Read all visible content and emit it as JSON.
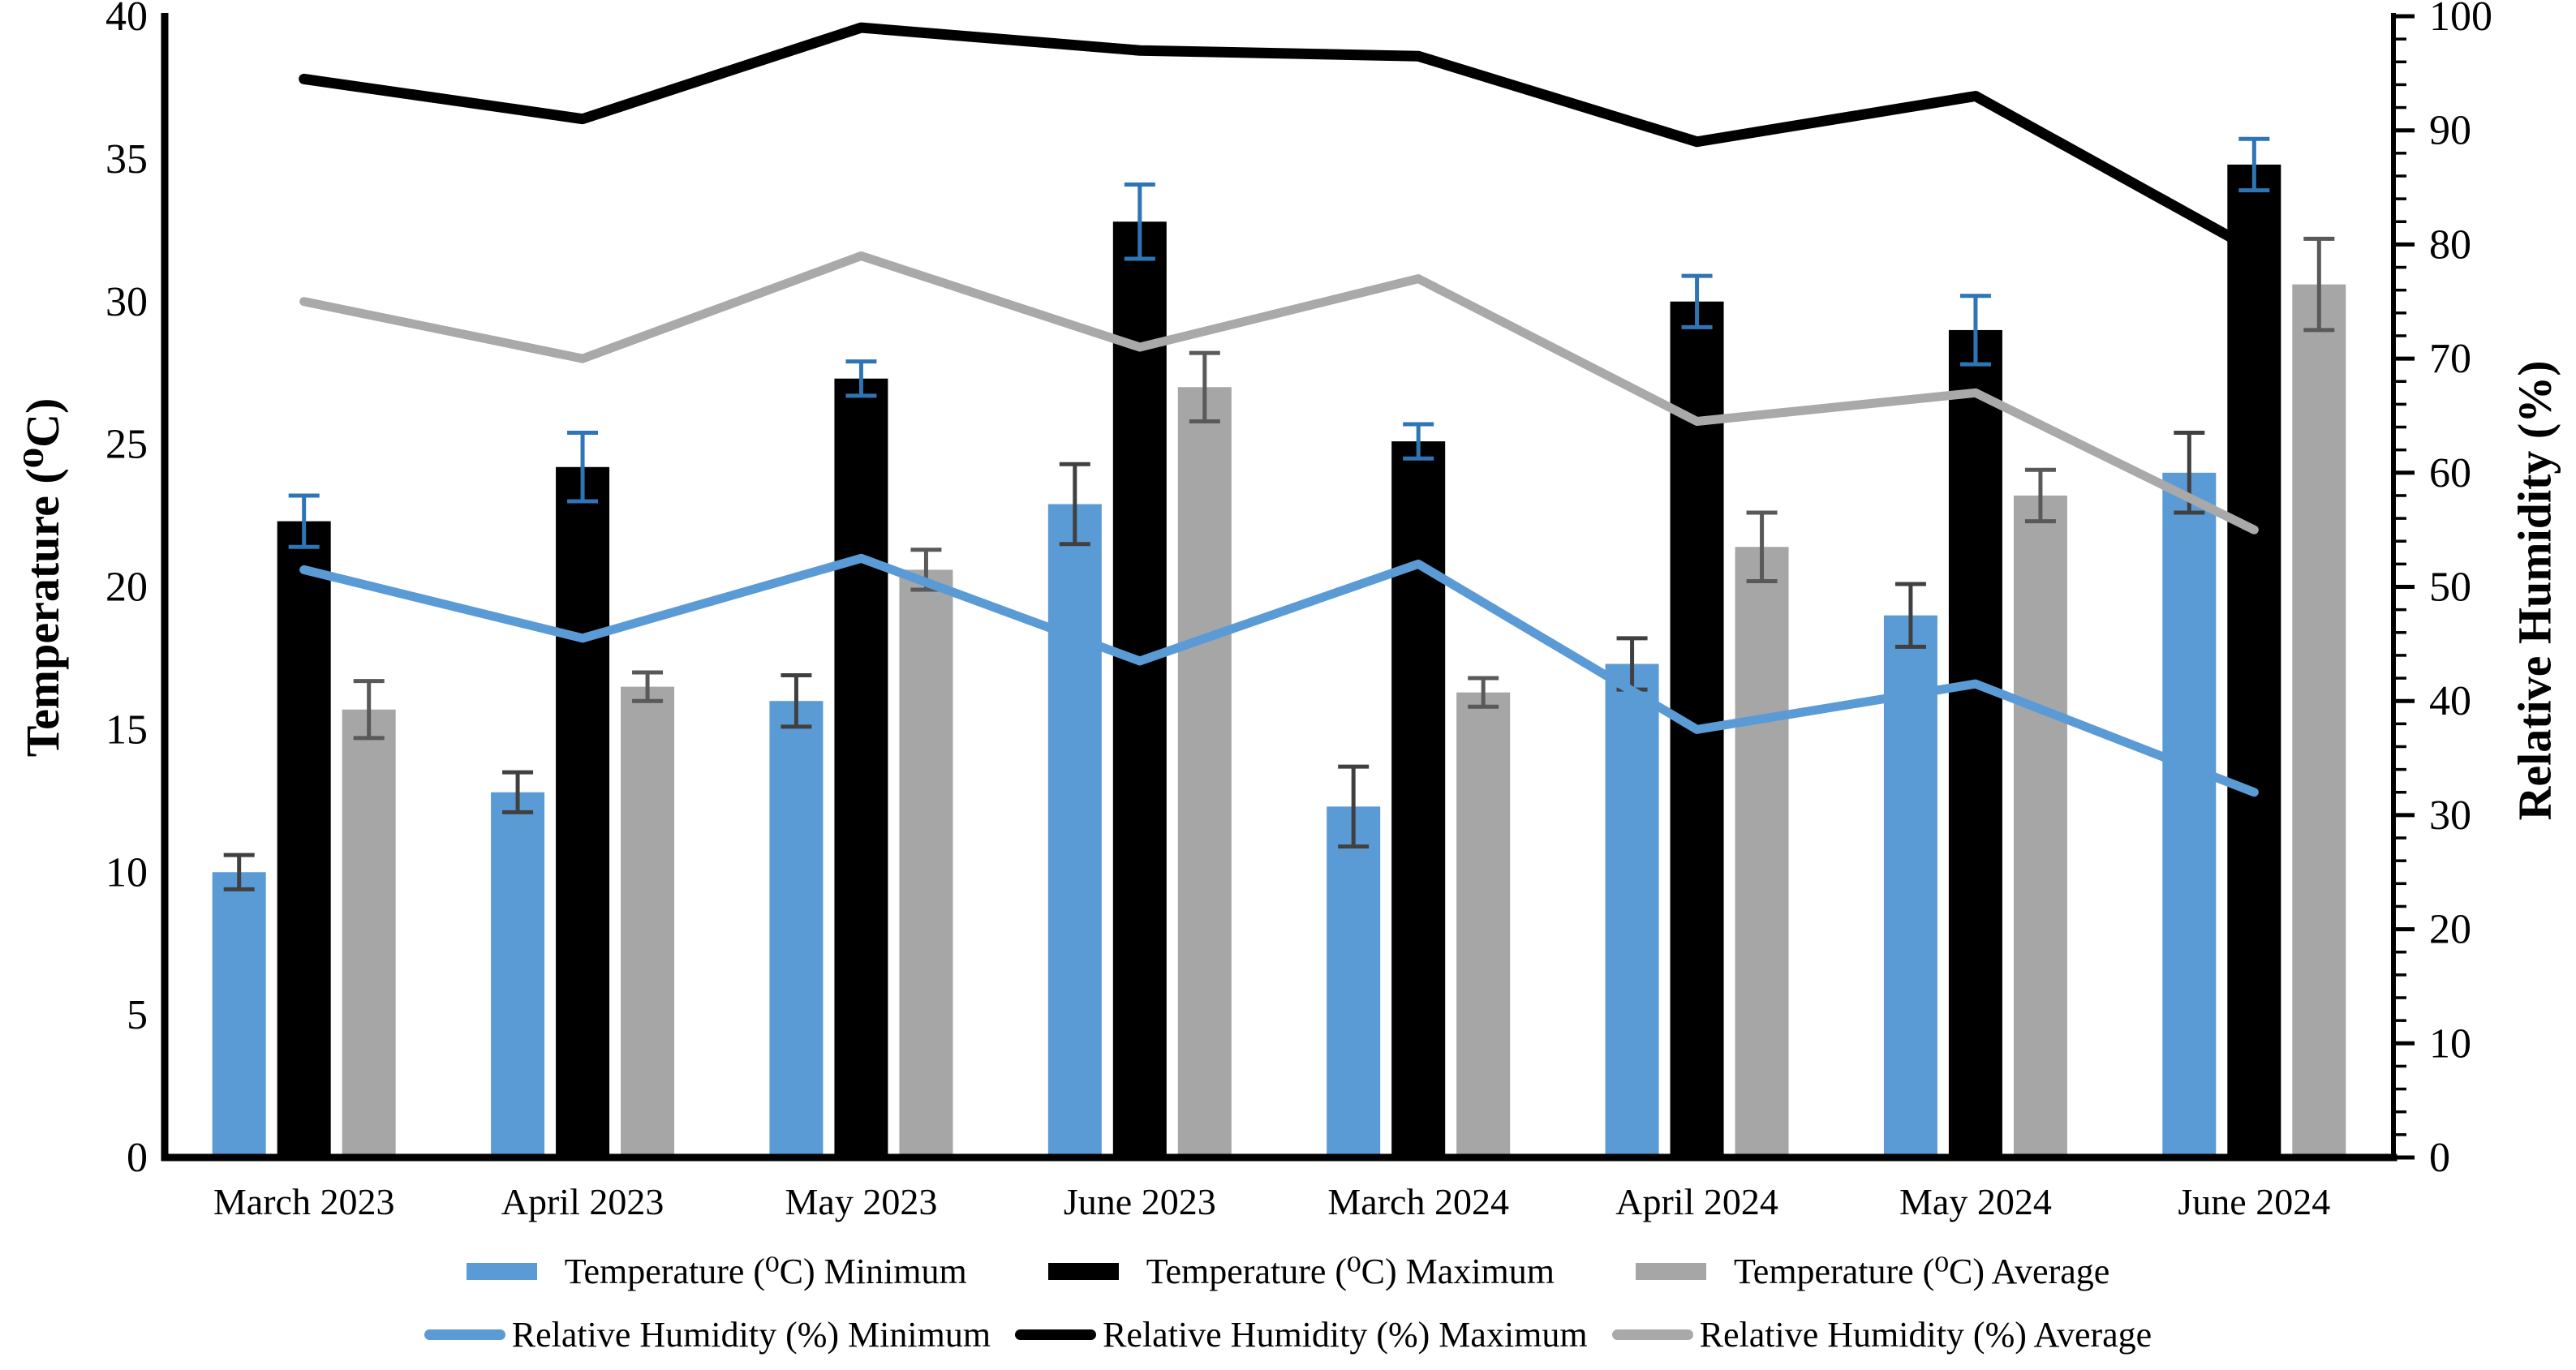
{
  "chart_data": {
    "type": "bar+line combo, dual axis",
    "title": "",
    "categories": [
      "March 2023",
      "April 2023",
      "May 2023",
      "June 2023",
      "March 2024",
      "April 2024",
      "May 2024",
      "June 2024"
    ],
    "left_axis": {
      "title": "Temperature (⁰C)",
      "min": 0,
      "max": 40,
      "tick_step": 5,
      "tick_labels": [
        "0",
        "5",
        "10",
        "15",
        "20",
        "25",
        "30",
        "35",
        "40"
      ]
    },
    "right_axis": {
      "title": "Relative Humidity (%)",
      "min": 0,
      "max": 100,
      "tick_step": 10,
      "minor_tick_step": 2,
      "tick_labels": [
        "0",
        "10",
        "20",
        "30",
        "40",
        "50",
        "60",
        "70",
        "80",
        "90",
        "100"
      ]
    },
    "bar_series": [
      {
        "name": "Temperature (⁰C) Minimum",
        "color": "#5B9BD5",
        "error_color": "#404040",
        "values": [
          10.0,
          12.8,
          16.0,
          22.9,
          12.3,
          17.3,
          19.0,
          24.0
        ],
        "errors": [
          0.6,
          0.7,
          0.9,
          1.4,
          1.4,
          0.9,
          1.1,
          1.4
        ]
      },
      {
        "name": "Temperature (⁰C) Maximum",
        "color": "#000000",
        "error_color": "#2E75B6",
        "values": [
          22.3,
          24.2,
          27.3,
          32.8,
          25.1,
          30.0,
          29.0,
          34.8
        ],
        "errors": [
          0.9,
          1.2,
          0.6,
          1.3,
          0.6,
          0.9,
          1.2,
          0.9
        ]
      },
      {
        "name": "Temperature (⁰C) Average",
        "color": "#A6A6A6",
        "error_color": "#595959",
        "values": [
          15.7,
          16.5,
          20.6,
          27.0,
          16.3,
          21.4,
          23.2,
          30.6
        ],
        "errors": [
          1.0,
          0.5,
          0.7,
          1.2,
          0.5,
          1.2,
          0.9,
          1.6
        ]
      }
    ],
    "line_series": [
      {
        "name": "Relative Humidity (%) Minimum",
        "color": "#5B9BD5",
        "stroke_width": 11,
        "values": [
          51.5,
          45.5,
          52.5,
          43.5,
          52.0,
          37.5,
          41.5,
          32.0
        ]
      },
      {
        "name": "Relative Humidity (%) Maximum",
        "color": "#000000",
        "stroke_width": 13,
        "values": [
          94.5,
          91.0,
          99.0,
          97.0,
          96.5,
          89.0,
          93.0,
          79.5
        ]
      },
      {
        "name": "Relative Humidity (%) Average",
        "color": "#A9A9A9",
        "stroke_width": 11,
        "values": [
          75.0,
          70.0,
          79.0,
          71.0,
          77.0,
          64.5,
          67.0,
          55.0
        ]
      }
    ],
    "legend_position": "bottom",
    "grid": "off",
    "background": "#FFFFFF"
  }
}
